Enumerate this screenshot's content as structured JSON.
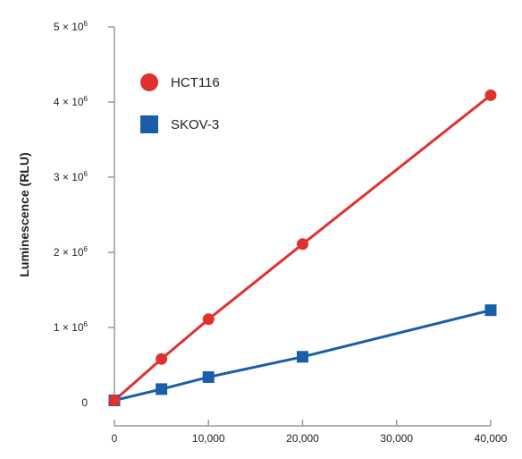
{
  "chart_data": {
    "type": "scatter",
    "title": "",
    "xlabel": "",
    "ylabel": "Luminescence (RLU)",
    "xlim": [
      0,
      40000
    ],
    "ylim": [
      0,
      5000000
    ],
    "x_ticks": [
      0,
      10000,
      20000,
      30000,
      40000
    ],
    "x_tick_labels": [
      "0",
      "10,000",
      "20,000",
      "30,000",
      "40,000"
    ],
    "y_ticks": [
      0,
      1000000,
      2000000,
      3000000,
      4000000,
      5000000
    ],
    "y_tick_labels": [
      {
        "base": "0",
        "exp": ""
      },
      {
        "base": "1 × 10",
        "exp": "6"
      },
      {
        "base": "2 × 10",
        "exp": "6"
      },
      {
        "base": "3 × 10",
        "exp": "6"
      },
      {
        "base": "4 × 10",
        "exp": "6"
      },
      {
        "base": "5 × 10",
        "exp": "6"
      }
    ],
    "grid": false,
    "legend_position": "top-left",
    "series": [
      {
        "name": "HCT116",
        "marker": "circle",
        "color": "#e03030",
        "x": [
          0,
          5000,
          10000,
          20000,
          40000
        ],
        "y": [
          30000,
          580000,
          1110000,
          2110000,
          4090000
        ]
      },
      {
        "name": "SKOV-3",
        "marker": "square",
        "color": "#1a5ea8",
        "x": [
          0,
          5000,
          10000,
          20000,
          40000
        ],
        "y": [
          30000,
          180000,
          340000,
          610000,
          1230000
        ]
      }
    ]
  }
}
